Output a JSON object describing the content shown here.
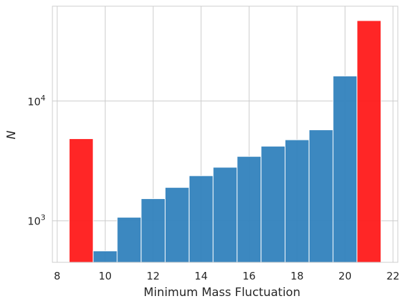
{
  "chart_data": {
    "type": "bar",
    "xlabel": "Minimum Mass Fluctuation",
    "ylabel": "N",
    "xlim": [
      7.8,
      22.2
    ],
    "ylim": [
      450,
      62000
    ],
    "yscale": "log",
    "grid": true,
    "x_ticks": [
      8,
      10,
      12,
      14,
      16,
      18,
      20,
      22
    ],
    "y_ticks": [
      {
        "value": 1000,
        "base": "10",
        "exp": "3"
      },
      {
        "value": 10000,
        "base": "10",
        "exp": "4"
      }
    ],
    "bins": [
      {
        "x0": 8.5,
        "x1": 9.5,
        "value": 4850,
        "color": "#ff1a1a"
      },
      {
        "x0": 9.5,
        "x1": 10.5,
        "value": 560,
        "color": "#3182bd"
      },
      {
        "x0": 10.5,
        "x1": 11.5,
        "value": 1070,
        "color": "#3182bd"
      },
      {
        "x0": 11.5,
        "x1": 12.5,
        "value": 1530,
        "color": "#3182bd"
      },
      {
        "x0": 12.5,
        "x1": 13.5,
        "value": 1900,
        "color": "#3182bd"
      },
      {
        "x0": 13.5,
        "x1": 14.5,
        "value": 2380,
        "color": "#3182bd"
      },
      {
        "x0": 14.5,
        "x1": 15.5,
        "value": 2800,
        "color": "#3182bd"
      },
      {
        "x0": 15.5,
        "x1": 16.5,
        "value": 3450,
        "color": "#3182bd"
      },
      {
        "x0": 16.5,
        "x1": 17.5,
        "value": 4200,
        "color": "#3182bd"
      },
      {
        "x0": 17.5,
        "x1": 18.5,
        "value": 4750,
        "color": "#3182bd"
      },
      {
        "x0": 18.5,
        "x1": 19.5,
        "value": 5750,
        "color": "#3182bd"
      },
      {
        "x0": 19.5,
        "x1": 20.5,
        "value": 16200,
        "color": "#3182bd"
      },
      {
        "x0": 20.5,
        "x1": 21.5,
        "value": 47000,
        "color": "#ff1a1a"
      }
    ]
  }
}
